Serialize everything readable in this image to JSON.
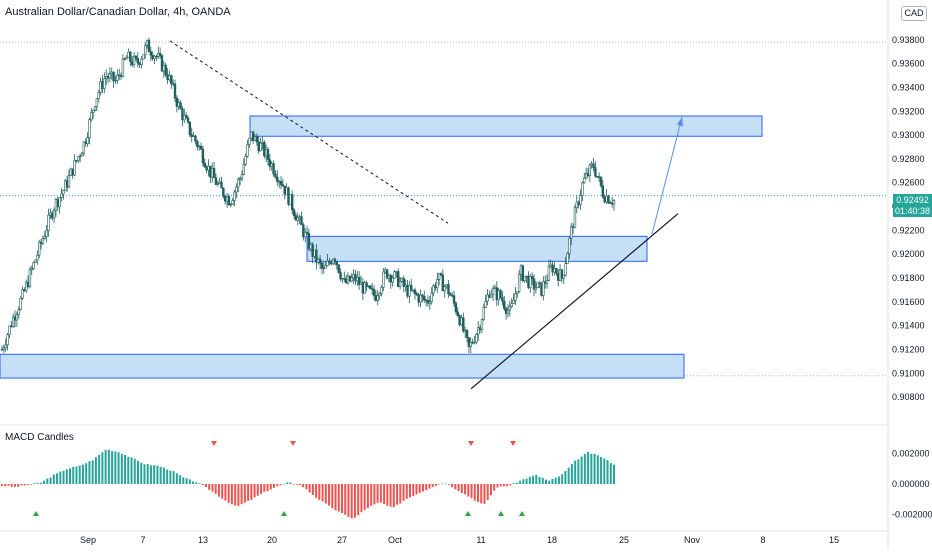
{
  "header": {
    "title": "Australian Dollar/Canadian Dollar, 4h, OANDA",
    "currency_badge": "CAD"
  },
  "last_price": {
    "value": "0.92492",
    "countdown": "01:40:38"
  },
  "indicator": {
    "name": "MACD Candles"
  },
  "colors": {
    "up": "#26a69a",
    "down": "#ef5350",
    "candle": "#1f5f5b",
    "zone_fill": "#bbd9f5",
    "zone_border": "#2962ff",
    "trendline": "#131722",
    "projection": "#5b8def",
    "axis_text": "#131722",
    "dotted_line": "#26a69a"
  },
  "chart_data": [
    {
      "type": "candlestick",
      "title": "Australian Dollar/Canadian Dollar, 4h, OANDA",
      "y_ticks": [
        "0.93800",
        "0.93600",
        "0.93400",
        "0.93200",
        "0.93000",
        "0.92800",
        "0.92600",
        "0.92400",
        "0.92200",
        "0.92000",
        "0.91800",
        "0.91600",
        "0.91400",
        "0.91200",
        "0.91000",
        "0.90800"
      ],
      "ylim": [
        0.9065,
        0.9405
      ],
      "x_ticks": [
        "Sep",
        "7",
        "13",
        "20",
        "27",
        "Oct",
        "11",
        "18",
        "25",
        "Nov",
        "8",
        "15"
      ],
      "close_path": [
        0.912,
        0.9145,
        0.9165,
        0.919,
        0.9215,
        0.924,
        0.9255,
        0.9275,
        0.9295,
        0.933,
        0.935,
        0.9345,
        0.9365,
        0.936,
        0.9375,
        0.9365,
        0.935,
        0.9325,
        0.9305,
        0.929,
        0.927,
        0.9255,
        0.9245,
        0.9265,
        0.93,
        0.929,
        0.9275,
        0.926,
        0.924,
        0.922,
        0.92,
        0.9185,
        0.92,
        0.9175,
        0.918,
        0.917,
        0.9165,
        0.9185,
        0.918,
        0.917,
        0.9165,
        0.916,
        0.918,
        0.917,
        0.915,
        0.912,
        0.914,
        0.917,
        0.9165,
        0.915,
        0.9185,
        0.9175,
        0.917,
        0.919,
        0.918,
        0.9225,
        0.926,
        0.9275,
        0.925,
        0.9245
      ],
      "levels": {
        "current_price": 0.92492,
        "high_marker": 0.9378,
        "low_marker": 0.9098
      },
      "zones": [
        {
          "from": 0.9299,
          "to": 0.9316
        },
        {
          "from": 0.9194,
          "to": 0.9215
        },
        {
          "from": 0.9096,
          "to": 0.9116
        }
      ]
    },
    {
      "type": "bar",
      "title": "MACD Candles",
      "y_ticks": [
        "0.002000",
        "0.000000",
        "-0.002000"
      ],
      "ylim": [
        -0.0027,
        0.0029
      ],
      "series_points": [
        -0.0001,
        -0.0002,
        -5e-05,
        0.0001,
        0.0006,
        0.001,
        0.0012,
        0.0016,
        0.0023,
        0.0021,
        0.0017,
        0.0013,
        0.0012,
        0.0009,
        0.0004,
        0.0001,
        -0.0004,
        -0.001,
        -0.0015,
        -0.0011,
        -0.0006,
        -0.0002,
        0.0001,
        -0.0001,
        -0.0008,
        -0.0014,
        -0.0019,
        -0.0023,
        -0.0016,
        -0.0012,
        -0.0016,
        -0.001,
        -0.0006,
        -0.0002,
        0.0001,
        -0.0004,
        -0.0009,
        -0.0014,
        -0.0002,
        -0.0001,
        0.0003,
        0.0006,
        0.0002,
        0.0006,
        0.0015,
        0.0021,
        0.0018,
        0.0013
      ],
      "markers_down": [
        "13",
        "20",
        "Oct 11 area",
        "14"
      ],
      "markers_up": [
        "Sep",
        "21",
        "Oct 10",
        "Oct 12",
        "Oct 13"
      ]
    }
  ]
}
